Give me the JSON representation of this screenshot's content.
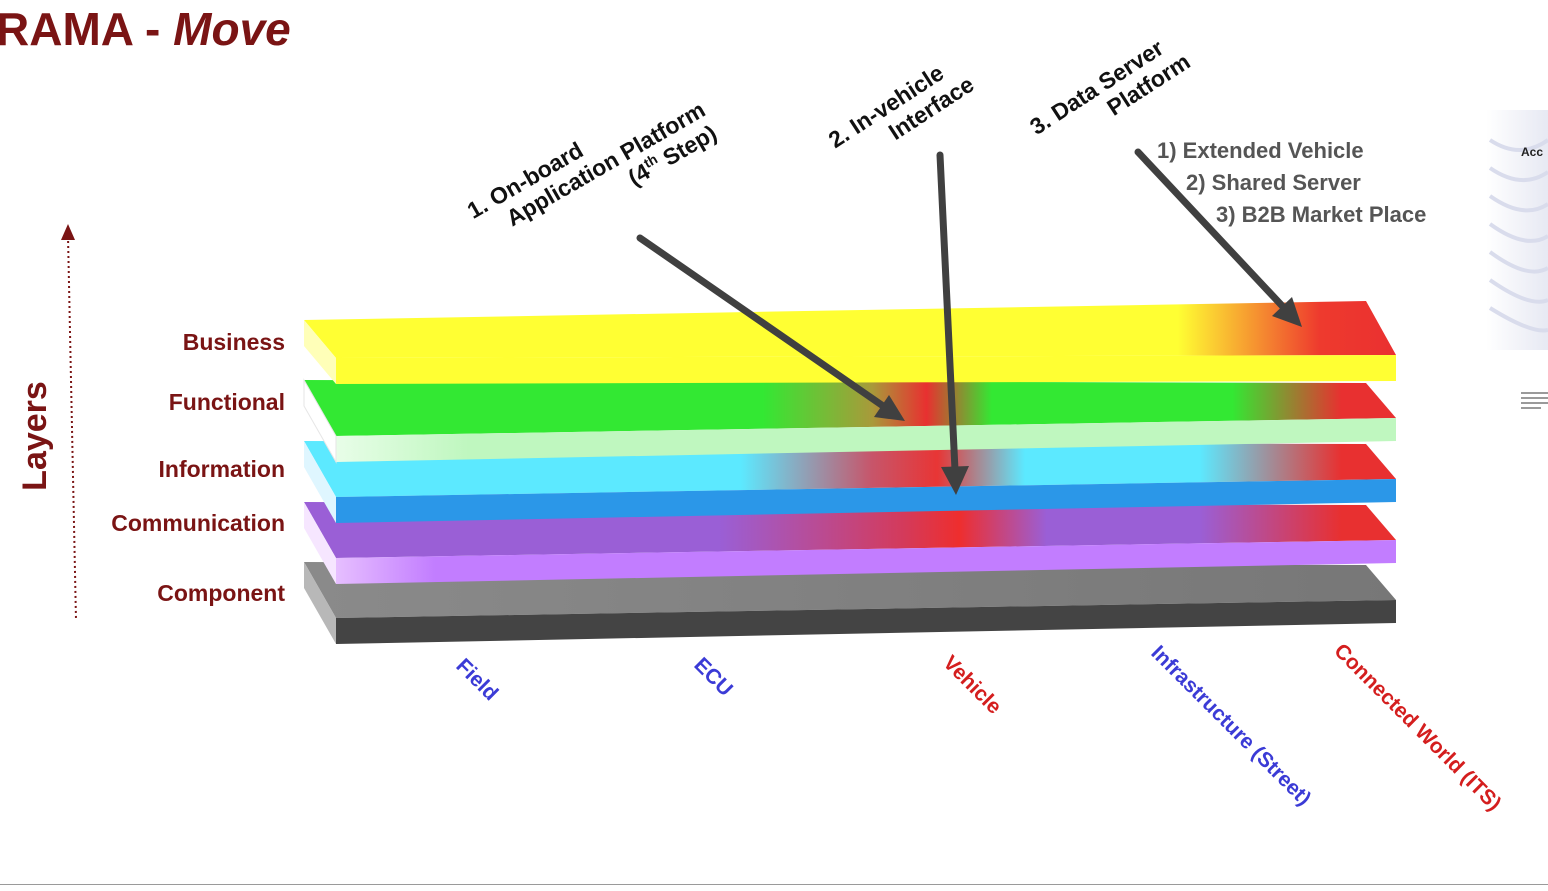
{
  "title": {
    "prefix": "RAMA - ",
    "italic": "Move"
  },
  "axis": {
    "label": "Layers"
  },
  "layers": [
    {
      "id": "business",
      "label": "Business"
    },
    {
      "id": "functional",
      "label": "Functional"
    },
    {
      "id": "information",
      "label": "Information"
    },
    {
      "id": "communication",
      "label": "Communication"
    },
    {
      "id": "component",
      "label": "Component"
    }
  ],
  "zones": [
    {
      "id": "field",
      "label": "Field",
      "color": "#3b3bd6"
    },
    {
      "id": "ecu",
      "label": "ECU",
      "color": "#3b3bd6"
    },
    {
      "id": "vehicle",
      "label": "Vehicle",
      "color": "#d41e1e"
    },
    {
      "id": "infrastructure",
      "label": "Infrastructure (Street)",
      "color": "#3b3bd6"
    },
    {
      "id": "connected-world",
      "label": "Connected World (ITS)",
      "color": "#d41e1e"
    }
  ],
  "callouts": {
    "onboard": {
      "line1": "1. On-board",
      "line2": "Application Platform",
      "line3_pre": "(4",
      "line3_sup": "th",
      "line3_post": " Step)"
    },
    "invehicle": {
      "line1": "2. In-vehicle",
      "line2": "Interface"
    },
    "dataserver": {
      "line1": "3. Data Server",
      "line2": "Platform"
    }
  },
  "server_options": [
    "1) Extended Vehicle",
    "2) Shared Server",
    "3) B2B Market Place"
  ],
  "thumbnail": {
    "heading": "Acc"
  },
  "colors": {
    "title": "#7a1414",
    "layer_label": "#7a1414",
    "business": "#ffff33",
    "functional": "#33e833",
    "information": "#5ce9ff",
    "communication": "#9a5fd6",
    "component": "#7a7a7a",
    "highlight": "#ea3030",
    "arrow": "#404040"
  }
}
